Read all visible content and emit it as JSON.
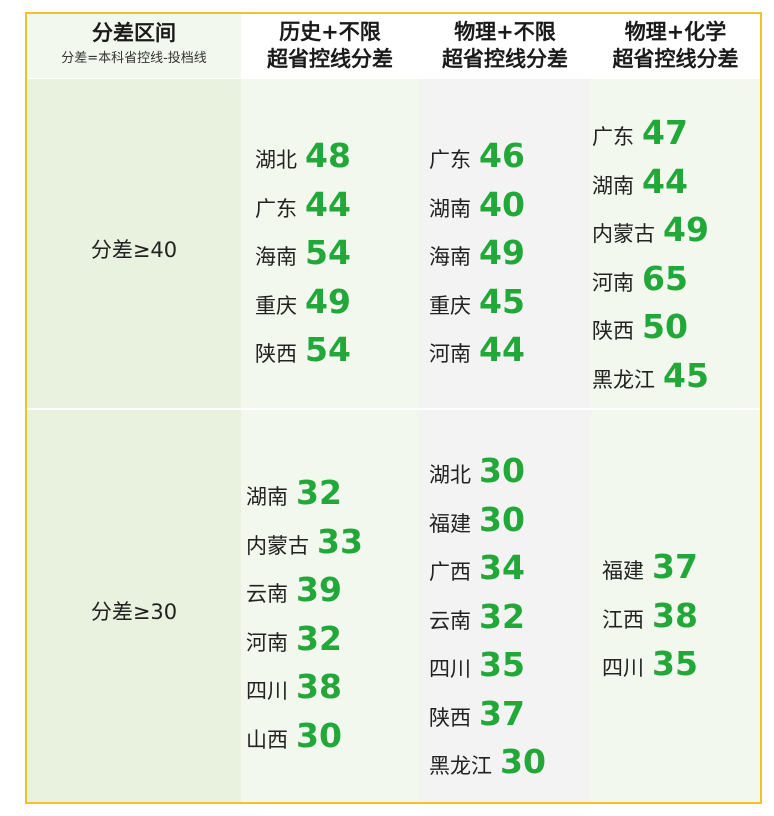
{
  "header": {
    "col0_title": "分差区间",
    "col0_sub": "分差=本科省控线-投档线",
    "col1_line1": "历史+不限",
    "col1_line2": "超省控线分差",
    "col2_line1": "物理+不限",
    "col2_line2": "超省控线分差",
    "col3_line1": "物理+化学",
    "col3_line2": "超省控线分差"
  },
  "rows": [
    {
      "label": "分差≥40",
      "col1": [
        {
          "province": "湖北",
          "value": "48"
        },
        {
          "province": "广东",
          "value": "44"
        },
        {
          "province": "海南",
          "value": "54"
        },
        {
          "province": "重庆",
          "value": "49"
        },
        {
          "province": "陕西",
          "value": "54"
        }
      ],
      "col2": [
        {
          "province": "广东",
          "value": "46"
        },
        {
          "province": "湖南",
          "value": "40"
        },
        {
          "province": "海南",
          "value": "49"
        },
        {
          "province": "重庆",
          "value": "45"
        },
        {
          "province": "河南",
          "value": "44"
        }
      ],
      "col3": [
        {
          "province": "广东",
          "value": "47"
        },
        {
          "province": "湖南",
          "value": "44"
        },
        {
          "province": "内蒙古",
          "value": "49"
        },
        {
          "province": "河南",
          "value": "65"
        },
        {
          "province": "陕西",
          "value": "50"
        },
        {
          "province": "黑龙江",
          "value": "45"
        }
      ]
    },
    {
      "label": "分差≥30",
      "col1": [
        {
          "province": "湖南",
          "value": "32"
        },
        {
          "province": "内蒙古",
          "value": "33"
        },
        {
          "province": "云南",
          "value": "39"
        },
        {
          "province": "河南",
          "value": "32"
        },
        {
          "province": "四川",
          "value": "38"
        },
        {
          "province": "山西",
          "value": "30"
        }
      ],
      "col2": [
        {
          "province": "湖北",
          "value": "30"
        },
        {
          "province": "福建",
          "value": "30"
        },
        {
          "province": "广西",
          "value": "34"
        },
        {
          "province": "云南",
          "value": "32"
        },
        {
          "province": "四川",
          "value": "35"
        },
        {
          "province": "陕西",
          "value": "37"
        },
        {
          "province": "黑龙江",
          "value": "30"
        }
      ],
      "col3": [
        {
          "province": "福建",
          "value": "37"
        },
        {
          "province": "江西",
          "value": "38"
        },
        {
          "province": "四川",
          "value": "35"
        }
      ]
    }
  ]
}
